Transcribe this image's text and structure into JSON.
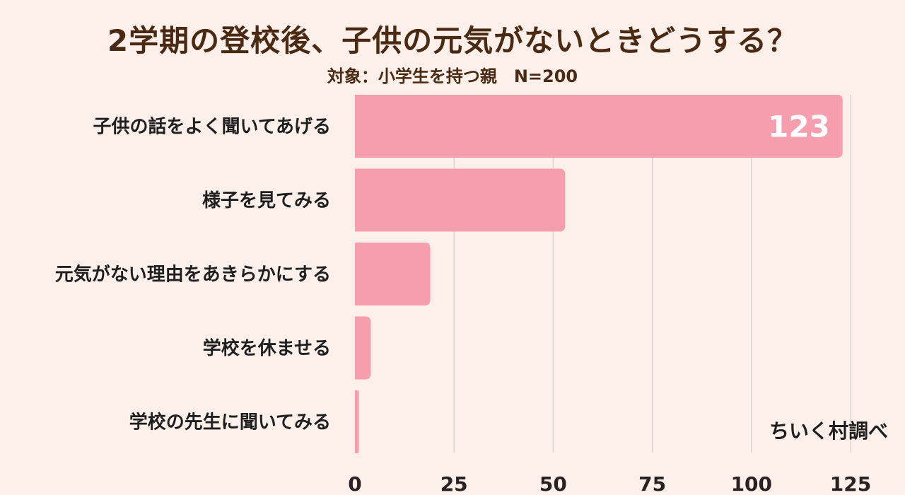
{
  "header": {
    "title": "2学期の登校後、子供の元気がないときどうする？",
    "subtitle": "対象：小学生を持つ親　N=200"
  },
  "footer": {
    "credit": "ちいく村調べ"
  },
  "colors": {
    "background": "#fdf0ea",
    "bar": "#f79eae",
    "grid": "#d9d2d0",
    "title": "#4a2a12",
    "data_label": "#ffffff"
  },
  "chart_data": {
    "type": "bar",
    "orientation": "horizontal",
    "categories": [
      "子供の話をよく聞いてあげる",
      "様子を見てみる",
      "元気がない理由をあきらかにする",
      "学校を休ませる",
      "学校の先生に聞いてみる"
    ],
    "values": [
      123,
      53,
      19,
      4,
      1
    ],
    "data_labels": [
      "123",
      "",
      "",
      "",
      ""
    ],
    "x_ticks": [
      0,
      25,
      50,
      75,
      100,
      125
    ],
    "xlim": [
      0,
      125
    ],
    "grid": true,
    "legend": "none",
    "title": "2学期の登校後、子供の元気がないときどうする？",
    "subtitle": "対象：小学生を持つ親　N=200"
  }
}
